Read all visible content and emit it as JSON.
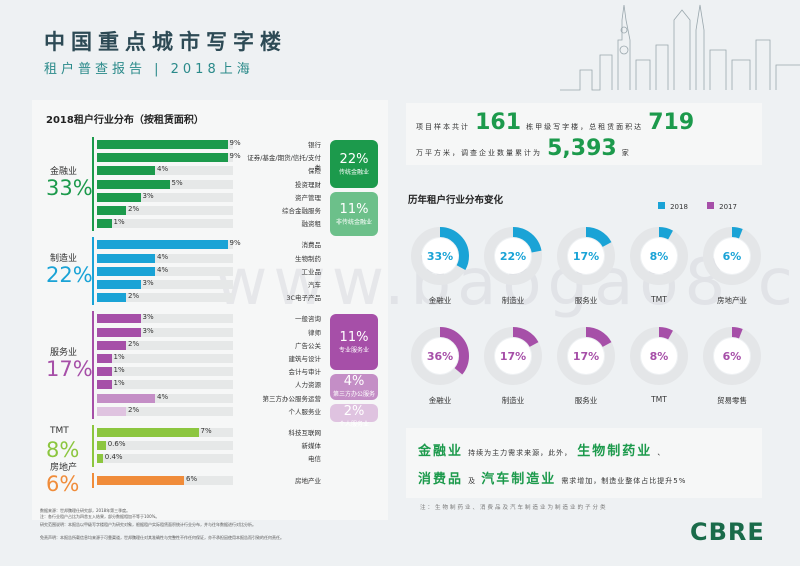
{
  "header": {
    "title": "中国重点城市写字楼",
    "subtitle": "租户普查报告 | 2018上海"
  },
  "left_panel": {
    "title": "2018租户行业分布（按租赁面积）",
    "groups": [
      {
        "name": "金融业",
        "pct": "33%",
        "color": "#1c9a4c"
      },
      {
        "name": "制造业",
        "pct": "22%",
        "color": "#1aa3d6"
      },
      {
        "name": "服务业",
        "pct": "17%",
        "color": "#a64fa8"
      },
      {
        "name": "TMT",
        "pct": "8%",
        "color": "#8cc63f"
      },
      {
        "name": "房地产",
        "pct": "6%",
        "color": "#f08c3a"
      }
    ],
    "badges": [
      {
        "pct": "22%",
        "label": "传统金融业",
        "color": "#1c9a4c"
      },
      {
        "pct": "11%",
        "label": "非传统金融业",
        "color": "#6cc08a"
      },
      {
        "pct": "11%",
        "label": "专业服务业",
        "color": "#a64fa8"
      },
      {
        "pct": "4%",
        "label": "第三方办公服务",
        "color": "#c48ec6"
      },
      {
        "pct": "2%",
        "label": "个人服务业",
        "color": "#dfc3e0"
      }
    ],
    "notes": [
      "数据来源：世邦魏理仕研究部，2018年第三季度。",
      "注：各行业租户占比为四舍五入结果，部分数据相加不等于100%。",
      "研究范围说明：本报告以甲级写字楼租户为研究对象，根据租户实际租赁面积统计行业分布，并与往年数据进行对比分析。",
      "免责声明：本报告所载信息均来源于可靠渠道，世邦魏理仕对其准确性与完整性不作任何保证，亦不承担因使用本报告而引致的任何责任。"
    ]
  },
  "summary": {
    "t1": "项目样本共计",
    "n1": "161",
    "t2": "栋甲级写字楼，总租赁面积达",
    "n2": "719",
    "t3": "万平方米，调查企业数量累计为",
    "n3": "5,393",
    "t4": "家"
  },
  "history": {
    "title": "历年租户行业分布变化",
    "legend": [
      {
        "label": "2018",
        "color": "#1aa3d6"
      },
      {
        "label": "2017",
        "color": "#a64fa8"
      }
    ]
  },
  "conclusion": {
    "hl1": "金融业",
    "t1": "持续为主力需求来源，此外，",
    "hl2": "生物制药业",
    "t2": "、",
    "hl3": "消费品",
    "t3": "及",
    "hl4": "汽车制造业",
    "t4": "需求增加，制造业整体占比提升5%",
    "note": "注：生物制药业、消费品及汽车制造业为制造业的子分类"
  },
  "logo": "CBRE",
  "watermark": "www.baogao8.com",
  "chart_data": [
    {
      "type": "bar",
      "title": "2018租户行业分布（按租赁面积）",
      "groups": [
        {
          "name": "金融业",
          "total": "33%",
          "categories": [
            "银行",
            "证券/基金/期货/信托/支付类",
            "保险",
            "投资理财",
            "资产管理",
            "综合金融服务",
            "融资租"
          ],
          "values": [
            9,
            9,
            4,
            5,
            3,
            2,
            1
          ]
        },
        {
          "name": "制造业",
          "total": "22%",
          "categories": [
            "消费品",
            "生物制药",
            "工业品",
            "汽车",
            "3C电子产品"
          ],
          "values": [
            9,
            4,
            4,
            3,
            2
          ]
        },
        {
          "name": "服务业",
          "total": "17%",
          "categories": [
            "一般咨询",
            "律师",
            "广告公关",
            "建筑与设计",
            "会计与审计",
            "人力资源",
            "第三方办公服务运营",
            "个人服务业"
          ],
          "values": [
            3,
            3,
            2,
            1,
            1,
            1,
            4,
            2
          ]
        },
        {
          "name": "TMT",
          "total": "8%",
          "categories": [
            "科技互联网",
            "新媒体",
            "电信"
          ],
          "values": [
            7,
            0.6,
            0.4
          ]
        },
        {
          "name": "房地产",
          "total": "6%",
          "categories": [
            "房地产业"
          ],
          "values": [
            6
          ]
        }
      ],
      "unit": "%"
    },
    {
      "type": "pie",
      "title": "历年租户行业分布变化",
      "series": [
        {
          "name": "2018",
          "categories": [
            "金融业",
            "制造业",
            "服务业",
            "TMT",
            "房地产业"
          ],
          "values": [
            33,
            22,
            17,
            8,
            6
          ]
        },
        {
          "name": "2017",
          "categories": [
            "金融业",
            "制造业",
            "服务业",
            "TMT",
            "贸易零售"
          ],
          "values": [
            36,
            17,
            17,
            8,
            6
          ]
        }
      ]
    }
  ]
}
